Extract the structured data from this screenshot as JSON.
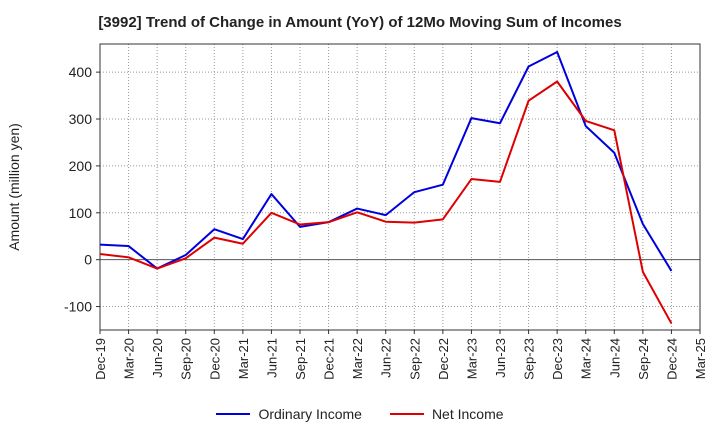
{
  "chart_data": {
    "type": "line",
    "title": "[3992]  Trend of Change in Amount (YoY) of 12Mo Moving Sum of Incomes",
    "ylabel": "Amount (million yen)",
    "xlabel": "",
    "ylim": [
      -150,
      460
    ],
    "yticks": [
      -100,
      0,
      100,
      200,
      300,
      400
    ],
    "categories": [
      "Dec-19",
      "Mar-20",
      "Jun-20",
      "Sep-20",
      "Dec-20",
      "Mar-21",
      "Jun-21",
      "Sep-21",
      "Dec-21",
      "Mar-22",
      "Jun-22",
      "Sep-22",
      "Dec-22",
      "Mar-23",
      "Jun-23",
      "Sep-23",
      "Dec-23",
      "Mar-24",
      "Jun-24",
      "Sep-24",
      "Dec-24",
      "Mar-25"
    ],
    "grid": true,
    "legend_position": "bottom",
    "series": [
      {
        "name": "Ordinary Income",
        "color": "#0000dd",
        "values": [
          32,
          29,
          -19,
          10,
          65,
          44,
          140,
          70,
          80,
          109,
          95,
          144,
          160,
          302,
          291,
          412,
          443,
          285,
          228,
          76,
          -24,
          null
        ]
      },
      {
        "name": "Net Income",
        "color": "#dd0000",
        "values": [
          12,
          5,
          -19,
          3,
          47,
          34,
          100,
          75,
          80,
          101,
          81,
          79,
          86,
          172,
          166,
          339,
          380,
          296,
          276,
          -26,
          -136,
          null
        ]
      }
    ]
  }
}
